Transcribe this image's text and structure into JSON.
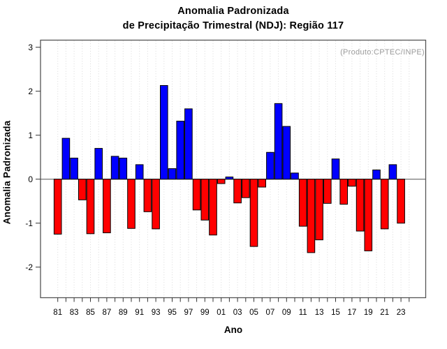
{
  "chart_data": {
    "type": "bar",
    "title_line1": "Anomalia Padronizada",
    "title_line2": "de Precipitação Trimestral (NDJ): Região 117",
    "xlabel": "Ano",
    "ylabel": "Anomalia Padronizada",
    "annotation": "(Produto:CPTEC/INPE)",
    "categories": [
      "81",
      "82",
      "83",
      "84",
      "85",
      "86",
      "87",
      "88",
      "89",
      "90",
      "91",
      "92",
      "93",
      "94",
      "95",
      "96",
      "97",
      "98",
      "99",
      "00",
      "01",
      "02",
      "03",
      "04",
      "05",
      "06",
      "07",
      "08",
      "09",
      "10",
      "11",
      "12",
      "13",
      "14",
      "15",
      "16",
      "17",
      "18",
      "19",
      "20",
      "21",
      "22",
      "23"
    ],
    "values": [
      -1.25,
      0.93,
      0.48,
      -0.47,
      -1.24,
      0.7,
      -1.22,
      0.52,
      0.48,
      -1.12,
      0.33,
      -0.74,
      -1.13,
      2.13,
      0.24,
      1.32,
      1.6,
      -0.7,
      -0.93,
      -1.27,
      -0.1,
      0.05,
      -0.54,
      -0.42,
      -1.53,
      -0.18,
      0.61,
      1.72,
      1.2,
      0.14,
      -1.07,
      -1.67,
      -1.38,
      -0.55,
      0.46,
      -0.57,
      -0.16,
      -1.18,
      -1.63,
      0.21,
      -1.13,
      0.33,
      -1.0
    ],
    "x_labeled_ticks": [
      "81",
      "83",
      "85",
      "87",
      "89",
      "91",
      "93",
      "95",
      "97",
      "99",
      "01",
      "03",
      "05",
      "07",
      "09",
      "11",
      "13",
      "15",
      "17",
      "19",
      "21",
      "23"
    ],
    "y_ticks": [
      3,
      2,
      1,
      0,
      -1,
      -2
    ],
    "ylim": [
      -2.6,
      3.2
    ],
    "legend": "none",
    "grid": "vertical-dotted",
    "colors": {
      "positive": "#0000ff",
      "negative": "#ff0000",
      "bar_border": "#000000",
      "zero_line": "#808080",
      "grid_line": "#d9d9d9",
      "frame": "#555555",
      "tick": "#333333",
      "annotation_text": "#9b9b9b"
    }
  }
}
